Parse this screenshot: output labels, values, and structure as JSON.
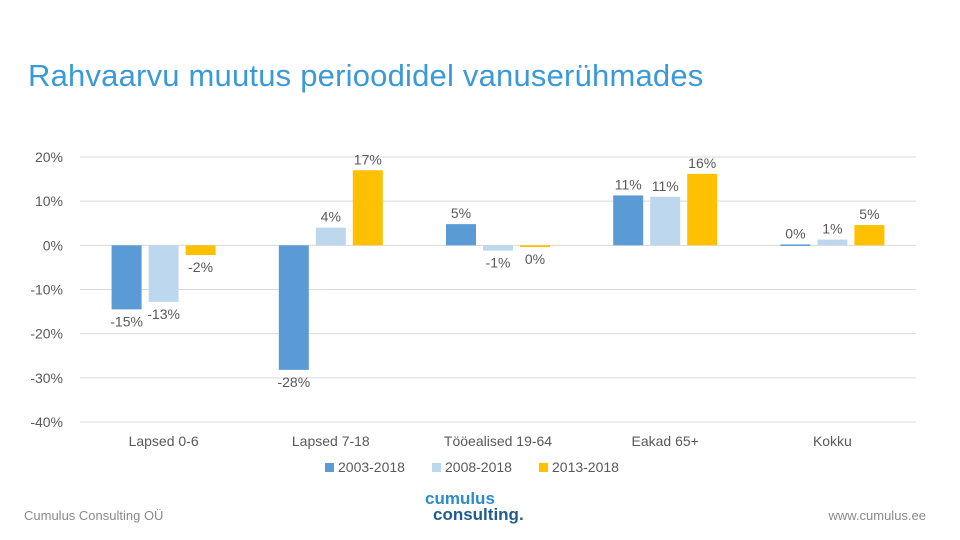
{
  "title": "Rahvaarvu muutus perioodidel vanuserühmades",
  "colors": {
    "title": "#3a9ad9",
    "series1": "#5b9bd5",
    "series2": "#bdd7ee",
    "series3": "#ffc000",
    "grid": "#d9d9d9",
    "axis_text": "#595959",
    "logo_primary": "#2e8bc9",
    "logo_secondary": "#1f5d8f"
  },
  "footer": {
    "company": "Cumulus Consulting OÜ",
    "website": "www.cumulus.ee"
  },
  "logo": {
    "line1": "cumulus",
    "line2": "consulting."
  },
  "chart_data": {
    "type": "bar",
    "title": "",
    "xlabel": "",
    "ylabel": "",
    "ylim": [
      -40,
      20
    ],
    "yticks": [
      20,
      10,
      0,
      -10,
      -20,
      -30,
      -40
    ],
    "ytick_labels": [
      "20%",
      "10%",
      "0%",
      "-10%",
      "-20%",
      "-30%",
      "-40%"
    ],
    "grid": true,
    "legend_position": "bottom",
    "categories": [
      "Lapsed 0-6",
      "Lapsed 7-18",
      "Tööealised 19-64",
      "Eakad 65+",
      "Kokku"
    ],
    "series": [
      {
        "name": "2003-2018",
        "values": [
          -14.5,
          -28.2,
          4.8,
          11.3,
          0.2
        ],
        "labels": [
          "-15%",
          "-28%",
          "5%",
          "11%",
          "0%"
        ]
      },
      {
        "name": "2008-2018",
        "values": [
          -12.8,
          4.0,
          -1.2,
          11.0,
          1.3
        ],
        "labels": [
          "-13%",
          "4%",
          "-1%",
          "11%",
          "1%"
        ]
      },
      {
        "name": "2013-2018",
        "values": [
          -2.2,
          17.0,
          -0.4,
          16.2,
          4.6
        ],
        "labels": [
          "-2%",
          "17%",
          "0%",
          "16%",
          "5%"
        ]
      }
    ]
  }
}
